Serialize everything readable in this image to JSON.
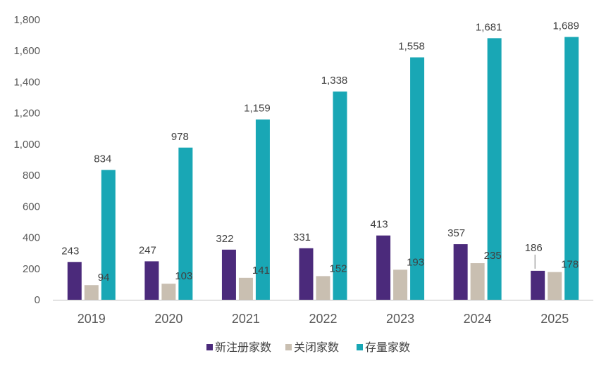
{
  "chart_data": {
    "type": "bar",
    "categories": [
      "2019",
      "2020",
      "2021",
      "2022",
      "2023",
      "2024",
      "2025"
    ],
    "series": [
      {
        "name": "新注册家数",
        "color": "#4B2A7B",
        "values": [
          243,
          247,
          322,
          331,
          413,
          357,
          186
        ],
        "labels": [
          "243",
          "247",
          "322",
          "331",
          "413",
          "357",
          "186"
        ]
      },
      {
        "name": "关闭家数",
        "color": "#C9BFB1",
        "values": [
          94,
          103,
          141,
          152,
          193,
          235,
          178
        ],
        "labels": [
          "94",
          "103",
          "141",
          "152",
          "193",
          "235",
          "178"
        ]
      },
      {
        "name": "存量家数",
        "color": "#19A7B5",
        "values": [
          834,
          978,
          1159,
          1338,
          1558,
          1681,
          1689
        ],
        "labels": [
          "834",
          "978",
          "1,159",
          "1,338",
          "1,558",
          "1,681",
          "1,689"
        ]
      }
    ],
    "yticks": [
      0,
      200,
      400,
      600,
      800,
      1000,
      1200,
      1400,
      1600,
      1800
    ],
    "ytick_labels": [
      "0",
      "200",
      "400",
      "600",
      "800",
      "1,000",
      "1,200",
      "1,400",
      "1,600",
      "1,800"
    ],
    "ylim": [
      0,
      1800
    ],
    "title": "",
    "xlabel": "",
    "ylabel": "",
    "grid": false,
    "legend_position": "bottom-center"
  }
}
